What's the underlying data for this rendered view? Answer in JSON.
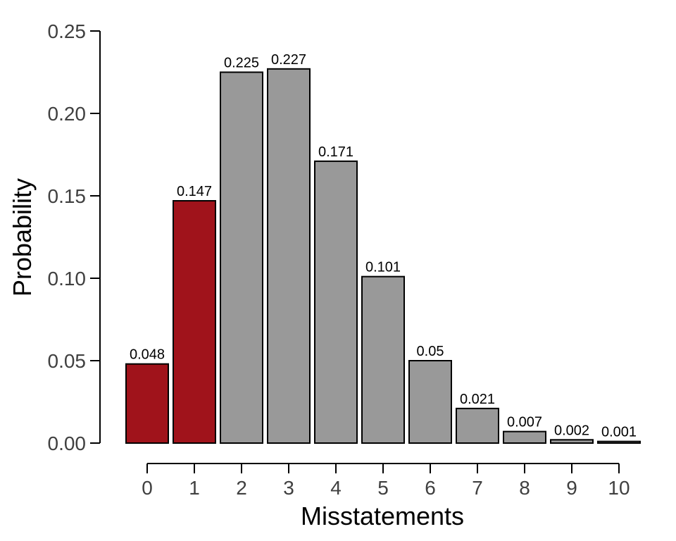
{
  "chart_data": {
    "type": "bar",
    "categories": [
      "0",
      "1",
      "2",
      "3",
      "4",
      "5",
      "6",
      "7",
      "8",
      "9",
      "10"
    ],
    "values": [
      0.048,
      0.147,
      0.225,
      0.227,
      0.171,
      0.101,
      0.05,
      0.021,
      0.007,
      0.002,
      0.001
    ],
    "data_labels": [
      "0.048",
      "0.147",
      "0.225",
      "0.227",
      "0.171",
      "0.101",
      "0.05",
      "0.021",
      "0.007",
      "0.002",
      "0.001"
    ],
    "highlighted": [
      true,
      true,
      false,
      false,
      false,
      false,
      false,
      false,
      false,
      false,
      false
    ],
    "xlabel": "Misstatements",
    "ylabel": "Probability",
    "ylim": [
      0,
      0.25
    ],
    "yticks": [
      "0.00",
      "0.05",
      "0.10",
      "0.15",
      "0.20",
      "0.25"
    ],
    "grid": false,
    "colors": {
      "highlight": "#a0131b",
      "default": "#999999",
      "outline": "#000000",
      "axis": "#000000",
      "tick_text": "#404040"
    }
  }
}
